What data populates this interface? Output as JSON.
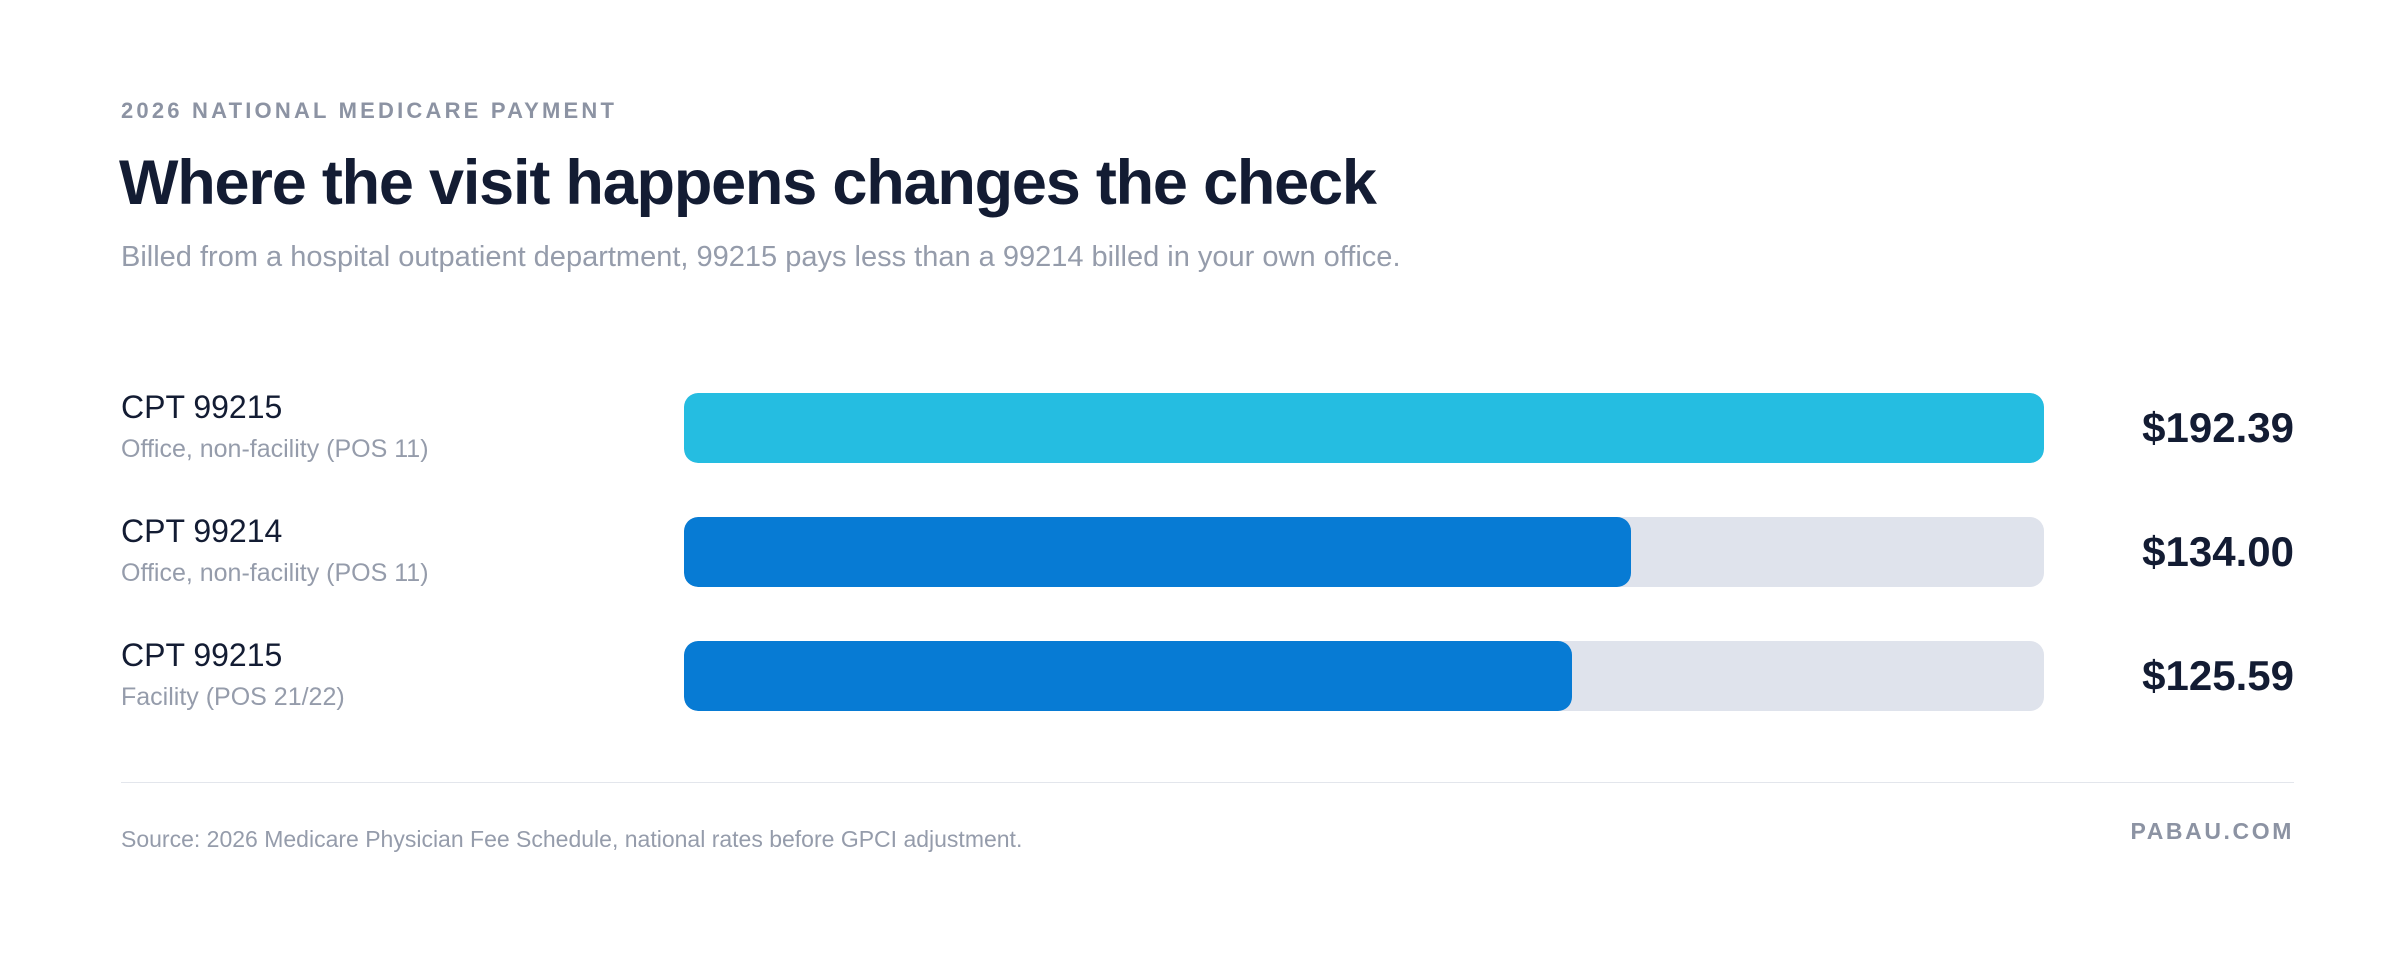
{
  "eyebrow": "2026 NATIONAL MEDICARE PAYMENT",
  "title": "Where the visit happens changes the check",
  "subtitle": "Billed from a hospital outpatient department, 99215 pays less than a 99214 billed in your own office.",
  "colors": {
    "accent_light": "#25bde1",
    "accent_dark": "#077bd4",
    "track": "#dfe3ec",
    "text_dark": "#131c33",
    "text_muted": "#959cab"
  },
  "chart_data": {
    "type": "bar",
    "orientation": "horizontal",
    "xlim": [
      0,
      192.39
    ],
    "rows": [
      {
        "code": "CPT 99215",
        "setting": "Office, non-facility (POS 11)",
        "value": 192.39,
        "value_label": "$192.39",
        "color": "#25bde1"
      },
      {
        "code": "CPT 99214",
        "setting": "Office, non-facility (POS 11)",
        "value": 134.0,
        "value_label": "$134.00",
        "color": "#077bd4"
      },
      {
        "code": "CPT 99215",
        "setting": "Facility (POS 21/22)",
        "value": 125.59,
        "value_label": "$125.59",
        "color": "#077bd4"
      }
    ]
  },
  "footer": {
    "source": "Source: 2026 Medicare Physician Fee Schedule, national rates before GPCI adjustment.",
    "brand": "PABAU.COM"
  }
}
